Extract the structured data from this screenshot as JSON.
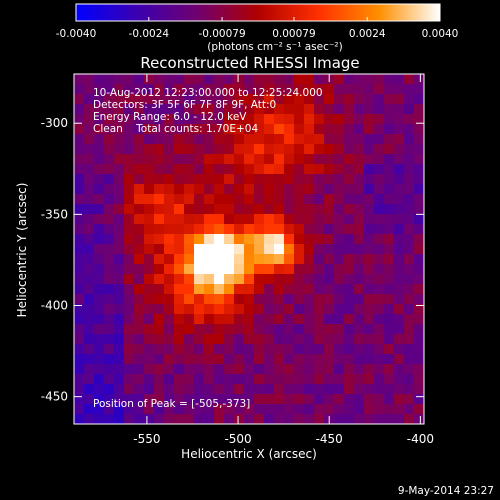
{
  "chart_data": {
    "type": "heatmap",
    "title": "Reconstructed RHESSI Image",
    "xlabel": "Heliocentric X (arcsec)",
    "ylabel": "Heliocentric Y (arcsec)",
    "xlim": [
      -590,
      -398
    ],
    "ylim": [
      -465,
      -273
    ],
    "x_ticks": [
      -550,
      -500,
      -450,
      -400
    ],
    "x_tick_labels": [
      "-550",
      "-500",
      "-450",
      "-400"
    ],
    "y_ticks": [
      -300,
      -350,
      -400,
      -450
    ],
    "y_tick_labels": [
      "-300",
      "-350",
      "-400",
      "-450"
    ],
    "colorbar": {
      "range": [
        -0.004,
        0.004
      ],
      "ticks": [
        -0.004,
        -0.0024,
        -0.00079,
        0.00079,
        0.0024,
        0.004
      ],
      "tick_labels": [
        "-0.0040",
        "-0.0024",
        "-0.00079",
        "0.00079",
        "0.0024",
        "0.0040"
      ],
      "units": "(photons cm⁻² s⁻¹ asec⁻²)",
      "colors": [
        "#0000ff",
        "#3b00b0",
        "#700070",
        "#b00000",
        "#ff3000",
        "#ff9000",
        "#ffffff"
      ]
    },
    "annotations": [
      "10-Aug-2012 12:23:00.000 to 12:25:24.000",
      "Detectors: 3F 5F 6F 7F 8F 9F, Att:0",
      "Energy Range: 6.0 - 12.0 keV",
      "Clean    Total counts: 1.70E+04"
    ],
    "peak_label": "Position of Peak = [-505,-373]",
    "peak": [
      -505,
      -373
    ],
    "sources": [
      {
        "x": -510,
        "y": -374,
        "sigma": 11,
        "amp": 1.0
      },
      {
        "x": -480,
        "y": -368,
        "sigma": 10,
        "amp": 0.9
      },
      {
        "x": -520,
        "y": -385,
        "sigma": 20,
        "amp": 0.55
      },
      {
        "x": -545,
        "y": -345,
        "sigma": 16,
        "amp": 0.4
      },
      {
        "x": -490,
        "y": -320,
        "sigma": 24,
        "amp": 0.3
      },
      {
        "x": -470,
        "y": -300,
        "sigma": 18,
        "amp": 0.28
      }
    ]
  },
  "footer": {
    "timestamp": "9-May-2014 23:27"
  }
}
